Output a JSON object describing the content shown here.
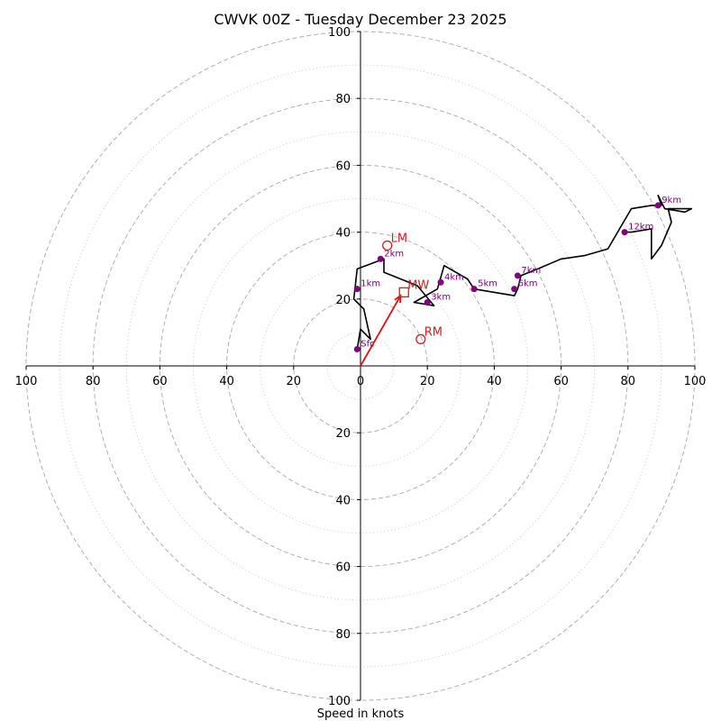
{
  "chart_data": {
    "type": "hodograph",
    "title": "CWVK 00Z - Tuesday December 23 2025",
    "xlabel": "Speed in knots",
    "range": [
      -100,
      100
    ],
    "major_rings": [
      20,
      40,
      60,
      80,
      100
    ],
    "minor_rings": [
      10,
      30,
      50,
      70,
      90
    ],
    "x_ticks": [
      {
        "v": -100,
        "label": "100"
      },
      {
        "v": -80,
        "label": "80"
      },
      {
        "v": -60,
        "label": "60"
      },
      {
        "v": -40,
        "label": "40"
      },
      {
        "v": -20,
        "label": "20"
      },
      {
        "v": 0,
        "label": "0"
      },
      {
        "v": 20,
        "label": "20"
      },
      {
        "v": 40,
        "label": "40"
      },
      {
        "v": 60,
        "label": "60"
      },
      {
        "v": 80,
        "label": "80"
      },
      {
        "v": 100,
        "label": "100"
      }
    ],
    "y_ticks": [
      {
        "v": 100,
        "label": "100"
      },
      {
        "v": 80,
        "label": "80"
      },
      {
        "v": 60,
        "label": "60"
      },
      {
        "v": 40,
        "label": "40"
      },
      {
        "v": 20,
        "label": "20"
      },
      {
        "v": -20,
        "label": "20"
      },
      {
        "v": -40,
        "label": "40"
      },
      {
        "v": -60,
        "label": "60"
      },
      {
        "v": -80,
        "label": "80"
      },
      {
        "v": -100,
        "label": "100"
      }
    ],
    "trace": [
      [
        -1,
        5
      ],
      [
        0,
        11
      ],
      [
        3,
        8
      ],
      [
        1,
        17
      ],
      [
        -1,
        19
      ],
      [
        -2,
        20
      ],
      [
        -1,
        29
      ],
      [
        7,
        32
      ],
      [
        7,
        28
      ],
      [
        17,
        24
      ],
      [
        22,
        18
      ],
      [
        16,
        19
      ],
      [
        23,
        23
      ],
      [
        25,
        30
      ],
      [
        32,
        26
      ],
      [
        34,
        23
      ],
      [
        46,
        21
      ],
      [
        47,
        23
      ],
      [
        48,
        27
      ],
      [
        53,
        29
      ],
      [
        60,
        32
      ],
      [
        67,
        33
      ],
      [
        74,
        35
      ],
      [
        81,
        47
      ],
      [
        87,
        48
      ],
      [
        90,
        48
      ],
      [
        89,
        51
      ],
      [
        91,
        47
      ],
      [
        97,
        46
      ],
      [
        99,
        47
      ],
      [
        92,
        47
      ],
      [
        93,
        43
      ],
      [
        90,
        36
      ],
      [
        87,
        32
      ],
      [
        87,
        41
      ],
      [
        81,
        40
      ],
      [
        79,
        40
      ]
    ],
    "height_markers": [
      {
        "label": "Sfc",
        "u": -1,
        "v": 5
      },
      {
        "label": "1km",
        "u": -1,
        "v": 23
      },
      {
        "label": "2km",
        "u": 6,
        "v": 32
      },
      {
        "label": "3km",
        "u": 20,
        "v": 19
      },
      {
        "label": "4km",
        "u": 24,
        "v": 25
      },
      {
        "label": "5km",
        "u": 34,
        "v": 23
      },
      {
        "label": "6km",
        "u": 46,
        "v": 23
      },
      {
        "label": "7km",
        "u": 47,
        "v": 27
      },
      {
        "label": "9km",
        "u": 89,
        "v": 48
      },
      {
        "label": "12km",
        "u": 79,
        "v": 40
      }
    ],
    "motion_markers": [
      {
        "label": "LM",
        "u": 8,
        "v": 36,
        "shape": "circle"
      },
      {
        "label": "MW",
        "u": 13,
        "v": 22,
        "shape": "square"
      },
      {
        "label": "RM",
        "u": 18,
        "v": 8,
        "shape": "circle"
      }
    ],
    "mean_wind_vector": {
      "u": 12,
      "v": 21
    },
    "colors": {
      "trace": "#000000",
      "height_markers": "#800080",
      "motion_markers": "#cc2222",
      "vector": "#e01010",
      "rings": "#b0b0b0"
    }
  }
}
